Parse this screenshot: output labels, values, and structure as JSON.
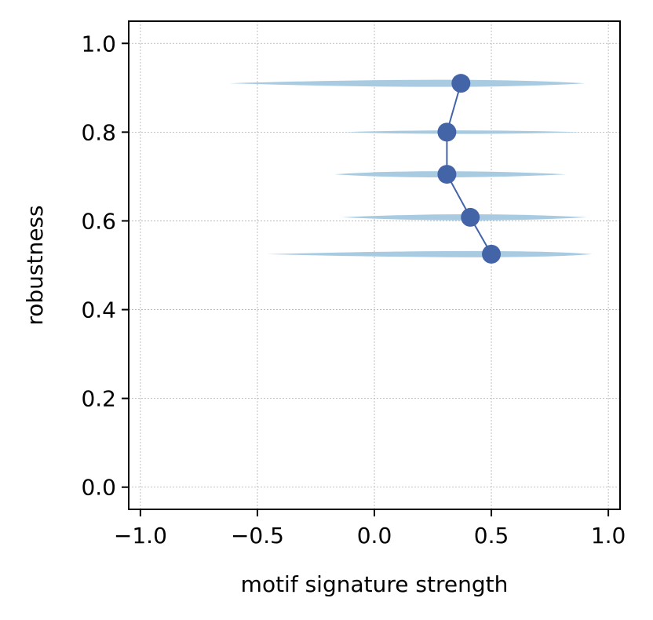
{
  "chart_data": {
    "type": "scatter",
    "xlabel": "motif signature strength",
    "ylabel": "robustness",
    "xlim": [
      -1.05,
      1.05
    ],
    "ylim": [
      -0.05,
      1.05
    ],
    "x_ticks": [
      -1.0,
      -0.5,
      0.0,
      0.5,
      1.0
    ],
    "x_tick_labels": [
      "−1.0",
      "−0.5",
      "0.0",
      "0.5",
      "1.0"
    ],
    "y_ticks": [
      0.0,
      0.2,
      0.4,
      0.6,
      0.8,
      1.0
    ],
    "y_tick_labels": [
      "0.0",
      "0.2",
      "0.4",
      "0.6",
      "0.8",
      "1.0"
    ],
    "grid": true,
    "colors": {
      "line": "#4464a8",
      "violin": "#a3c8e0"
    },
    "series": [
      {
        "points": [
          {
            "x": 0.5,
            "y": 0.525
          },
          {
            "x": 0.41,
            "y": 0.608
          },
          {
            "x": 0.31,
            "y": 0.705
          },
          {
            "x": 0.31,
            "y": 0.8
          },
          {
            "x": 0.37,
            "y": 0.91
          }
        ]
      }
    ],
    "violins": [
      {
        "y": 0.91,
        "min": -0.62,
        "max": 0.9,
        "peak": 0.4,
        "half_height": 0.008
      },
      {
        "y": 0.8,
        "min": -0.13,
        "max": 0.89,
        "peak": 0.33,
        "half_height": 0.004
      },
      {
        "y": 0.705,
        "min": -0.17,
        "max": 0.82,
        "peak": 0.25,
        "half_height": 0.007
      },
      {
        "y": 0.608,
        "min": -0.14,
        "max": 0.91,
        "peak": 0.42,
        "half_height": 0.007
      },
      {
        "y": 0.525,
        "min": -0.46,
        "max": 0.93,
        "peak": 0.6,
        "half_height": 0.007
      }
    ]
  }
}
